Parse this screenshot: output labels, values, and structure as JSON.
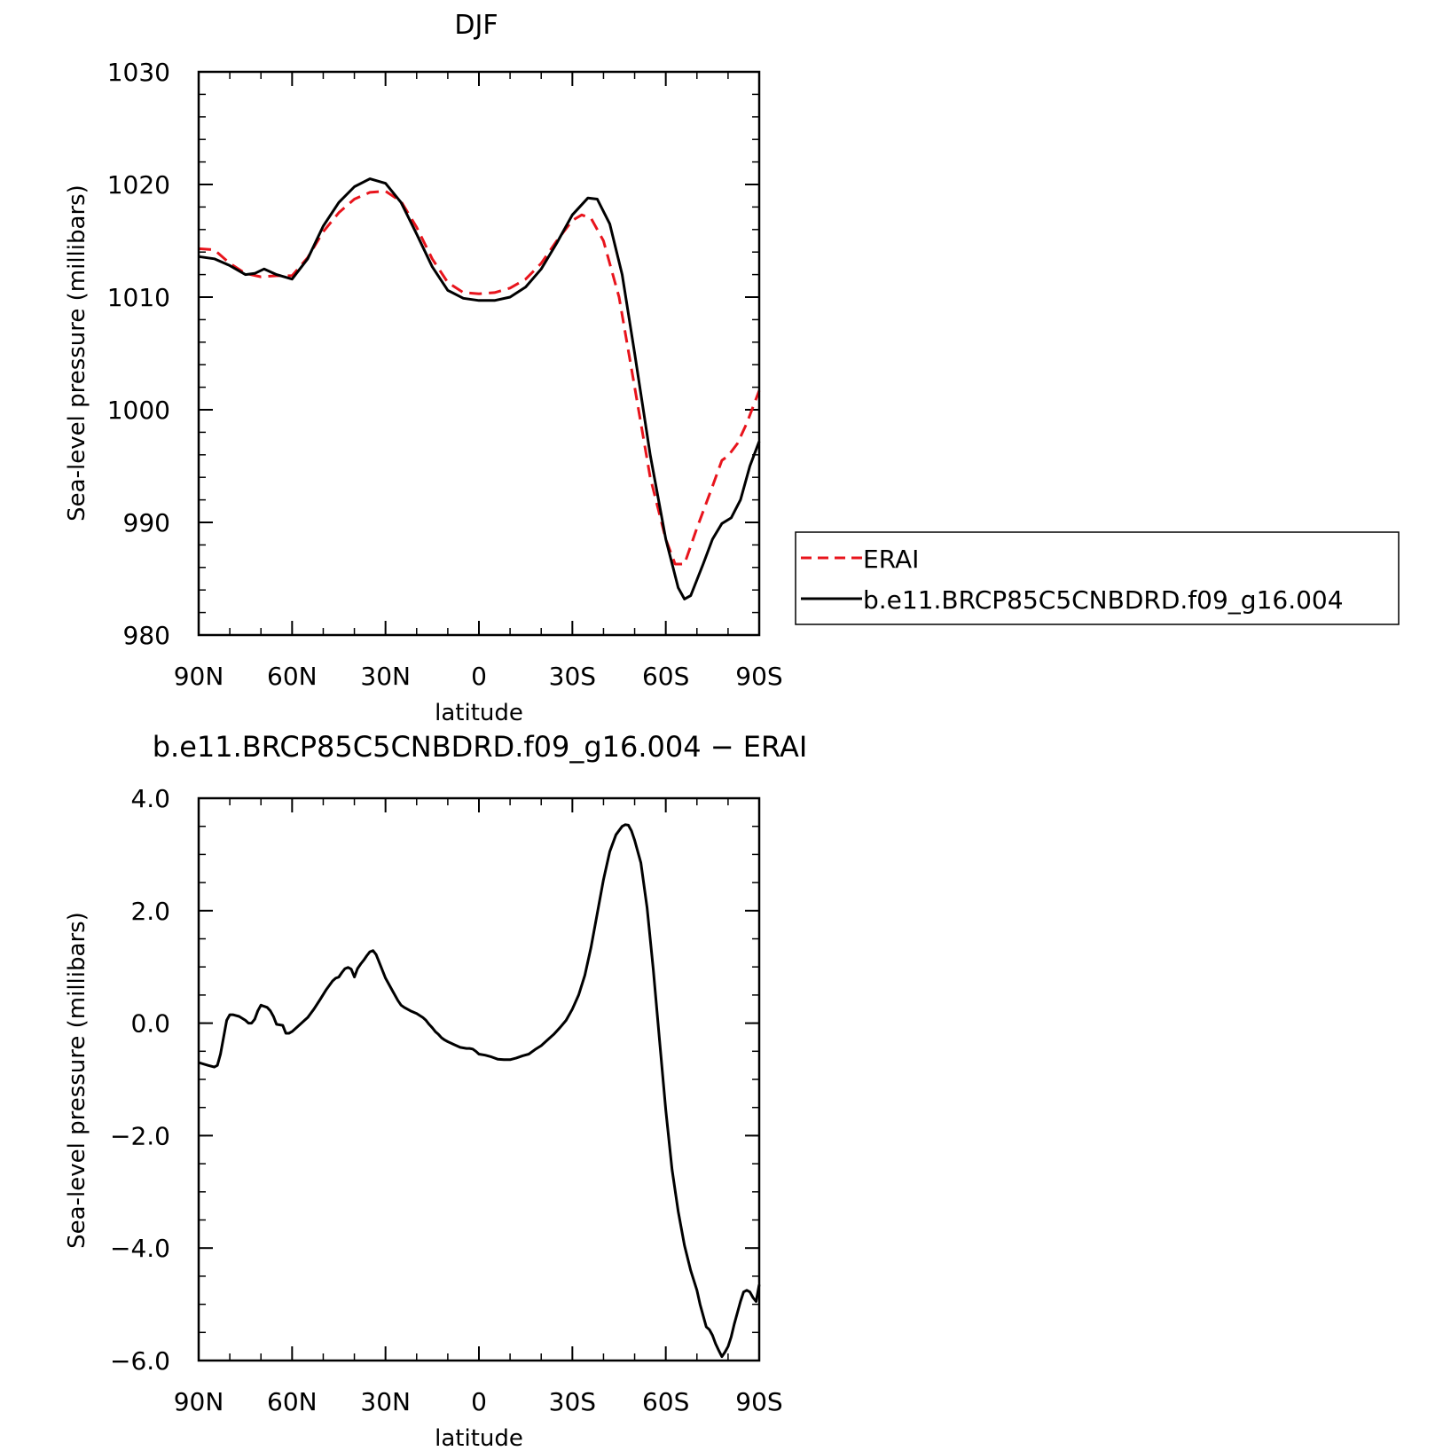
{
  "chart_data": [
    {
      "type": "line",
      "title": "DJF",
      "xlabel": "latitude",
      "ylabel": "Sea-level pressure (millibars)",
      "xlim": [
        90,
        -90
      ],
      "ylim": [
        980,
        1030
      ],
      "x_ticks": [
        90,
        60,
        30,
        0,
        -30,
        -60,
        -90
      ],
      "x_tick_labels": [
        "90N",
        "60N",
        "30N",
        "0",
        "30S",
        "60S",
        "90S"
      ],
      "y_ticks": [
        980,
        990,
        1000,
        1010,
        1020,
        1030
      ],
      "y_tick_labels": [
        "980",
        "990",
        "1000",
        "1010",
        "1020",
        "1030"
      ],
      "legend_position": "right",
      "series": [
        {
          "name": "ERAI",
          "color": "#e8141c",
          "dash": "dashed",
          "points": [
            [
              90,
              1014.3
            ],
            [
              85,
              1014.2
            ],
            [
              80,
              1013.0
            ],
            [
              75,
              1012.1
            ],
            [
              70,
              1011.8
            ],
            [
              65,
              1011.9
            ],
            [
              60,
              1011.9
            ],
            [
              55,
              1013.5
            ],
            [
              50,
              1015.8
            ],
            [
              45,
              1017.5
            ],
            [
              40,
              1018.7
            ],
            [
              35,
              1019.3
            ],
            [
              30,
              1019.4
            ],
            [
              25,
              1018.5
            ],
            [
              20,
              1016.2
            ],
            [
              15,
              1013.4
            ],
            [
              10,
              1011.3
            ],
            [
              5,
              1010.4
            ],
            [
              0,
              1010.3
            ],
            [
              -5,
              1010.4
            ],
            [
              -10,
              1010.8
            ],
            [
              -15,
              1011.6
            ],
            [
              -20,
              1013.0
            ],
            [
              -25,
              1015.0
            ],
            [
              -30,
              1016.8
            ],
            [
              -33,
              1017.3
            ],
            [
              -36,
              1017.0
            ],
            [
              -40,
              1015.0
            ],
            [
              -45,
              1010.0
            ],
            [
              -50,
              1002.0
            ],
            [
              -55,
              994.0
            ],
            [
              -60,
              988.5
            ],
            [
              -63,
              986.3
            ],
            [
              -66,
              986.3
            ],
            [
              -70,
              989.5
            ],
            [
              -75,
              993.2
            ],
            [
              -78,
              995.5
            ],
            [
              -80,
              995.9
            ],
            [
              -83,
              997.0
            ],
            [
              -86,
              998.8
            ],
            [
              -90,
              1001.7
            ]
          ]
        },
        {
          "name": "b.e11.BRCP85C5CNBDRD.f09_g16.004",
          "color": "#000000",
          "dash": "solid",
          "points": [
            [
              90,
              1013.6
            ],
            [
              85,
              1013.4
            ],
            [
              80,
              1012.8
            ],
            [
              75,
              1012.0
            ],
            [
              72,
              1012.1
            ],
            [
              69,
              1012.5
            ],
            [
              65,
              1012.0
            ],
            [
              60,
              1011.6
            ],
            [
              55,
              1013.4
            ],
            [
              50,
              1016.3
            ],
            [
              45,
              1018.4
            ],
            [
              40,
              1019.8
            ],
            [
              35,
              1020.5
            ],
            [
              30,
              1020.1
            ],
            [
              25,
              1018.4
            ],
            [
              20,
              1015.6
            ],
            [
              15,
              1012.7
            ],
            [
              10,
              1010.6
            ],
            [
              5,
              1009.9
            ],
            [
              0,
              1009.7
            ],
            [
              -5,
              1009.7
            ],
            [
              -10,
              1010.0
            ],
            [
              -15,
              1010.9
            ],
            [
              -20,
              1012.5
            ],
            [
              -25,
              1014.8
            ],
            [
              -30,
              1017.3
            ],
            [
              -35,
              1018.8
            ],
            [
              -38,
              1018.7
            ],
            [
              -42,
              1016.5
            ],
            [
              -46,
              1012.0
            ],
            [
              -50,
              1005.0
            ],
            [
              -55,
              996.0
            ],
            [
              -60,
              988.5
            ],
            [
              -64,
              984.2
            ],
            [
              -66,
              983.2
            ],
            [
              -68,
              983.5
            ],
            [
              -72,
              986.3
            ],
            [
              -75,
              988.5
            ],
            [
              -78,
              989.9
            ],
            [
              -81,
              990.4
            ],
            [
              -84,
              992.0
            ],
            [
              -87,
              995.0
            ],
            [
              -90,
              997.2
            ]
          ]
        }
      ]
    },
    {
      "type": "line",
      "title": "b.e11.BRCP85C5CNBDRD.f09_g16.004 − ERAI",
      "xlabel": "latitude",
      "ylabel": "Sea-level pressure (millibars)",
      "xlim": [
        90,
        -90
      ],
      "ylim": [
        -6.0,
        4.0
      ],
      "x_ticks": [
        90,
        60,
        30,
        0,
        -30,
        -60,
        -90
      ],
      "x_tick_labels": [
        "90N",
        "60N",
        "30N",
        "0",
        "30S",
        "60S",
        "90S"
      ],
      "y_ticks": [
        -6,
        -4,
        -2,
        0,
        2,
        4
      ],
      "y_tick_labels": [
        "−6.0",
        "−4.0",
        "−2.0",
        "0.0",
        "2.0",
        "4.0"
      ],
      "series": [
        {
          "color": "#000000",
          "dash": "solid",
          "points": [
            [
              90,
              -0.7
            ],
            [
              87,
              -0.75
            ],
            [
              85,
              -0.78
            ],
            [
              84,
              -0.75
            ],
            [
              83,
              -0.55
            ],
            [
              82,
              -0.25
            ],
            [
              81,
              0.05
            ],
            [
              80,
              0.15
            ],
            [
              79,
              0.15
            ],
            [
              77,
              0.12
            ],
            [
              75,
              0.05
            ],
            [
              74,
              0.0
            ],
            [
              73,
              0.0
            ],
            [
              72,
              0.07
            ],
            [
              71,
              0.22
            ],
            [
              70,
              0.32
            ],
            [
              69,
              0.3
            ],
            [
              68,
              0.28
            ],
            [
              67,
              0.22
            ],
            [
              66,
              0.12
            ],
            [
              65,
              -0.02
            ],
            [
              64,
              -0.03
            ],
            [
              63,
              -0.04
            ],
            [
              62,
              -0.18
            ],
            [
              61,
              -0.18
            ],
            [
              60,
              -0.15
            ],
            [
              58,
              -0.05
            ],
            [
              56,
              0.05
            ],
            [
              55,
              0.1
            ],
            [
              53,
              0.25
            ],
            [
              51,
              0.42
            ],
            [
              49,
              0.6
            ],
            [
              47,
              0.75
            ],
            [
              46,
              0.8
            ],
            [
              45,
              0.82
            ],
            [
              44,
              0.9
            ],
            [
              43,
              0.97
            ],
            [
              42,
              0.99
            ],
            [
              41,
              0.96
            ],
            [
              40,
              0.82
            ],
            [
              39,
              0.97
            ],
            [
              38,
              1.05
            ],
            [
              37,
              1.12
            ],
            [
              36,
              1.2
            ],
            [
              35,
              1.27
            ],
            [
              34,
              1.29
            ],
            [
              33,
              1.22
            ],
            [
              32,
              1.08
            ],
            [
              30,
              0.8
            ],
            [
              28,
              0.6
            ],
            [
              26,
              0.4
            ],
            [
              25,
              0.32
            ],
            [
              24,
              0.28
            ],
            [
              22,
              0.22
            ],
            [
              20,
              0.17
            ],
            [
              18,
              0.1
            ],
            [
              17,
              0.05
            ],
            [
              16,
              -0.02
            ],
            [
              15,
              -0.08
            ],
            [
              14,
              -0.15
            ],
            [
              13,
              -0.2
            ],
            [
              12,
              -0.26
            ],
            [
              11,
              -0.3
            ],
            [
              10,
              -0.33
            ],
            [
              8,
              -0.38
            ],
            [
              6,
              -0.43
            ],
            [
              4,
              -0.45
            ],
            [
              3,
              -0.45
            ],
            [
              2,
              -0.46
            ],
            [
              1,
              -0.5
            ],
            [
              0,
              -0.55
            ],
            [
              -2,
              -0.57
            ],
            [
              -4,
              -0.6
            ],
            [
              -6,
              -0.64
            ],
            [
              -8,
              -0.65
            ],
            [
              -10,
              -0.65
            ],
            [
              -12,
              -0.62
            ],
            [
              -14,
              -0.58
            ],
            [
              -16,
              -0.55
            ],
            [
              -18,
              -0.47
            ],
            [
              -20,
              -0.4
            ],
            [
              -22,
              -0.3
            ],
            [
              -24,
              -0.2
            ],
            [
              -26,
              -0.08
            ],
            [
              -28,
              0.05
            ],
            [
              -30,
              0.25
            ],
            [
              -32,
              0.5
            ],
            [
              -34,
              0.85
            ],
            [
              -36,
              1.35
            ],
            [
              -38,
              1.95
            ],
            [
              -40,
              2.55
            ],
            [
              -42,
              3.05
            ],
            [
              -44,
              3.35
            ],
            [
              -46,
              3.5
            ],
            [
              -47,
              3.53
            ],
            [
              -48,
              3.52
            ],
            [
              -49,
              3.42
            ],
            [
              -50,
              3.25
            ],
            [
              -52,
              2.85
            ],
            [
              -54,
              2.05
            ],
            [
              -56,
              0.95
            ],
            [
              -58,
              -0.3
            ],
            [
              -60,
              -1.55
            ],
            [
              -62,
              -2.6
            ],
            [
              -64,
              -3.35
            ],
            [
              -66,
              -3.95
            ],
            [
              -68,
              -4.4
            ],
            [
              -70,
              -4.75
            ],
            [
              -71,
              -5.0
            ],
            [
              -72,
              -5.2
            ],
            [
              -73,
              -5.4
            ],
            [
              -74,
              -5.45
            ],
            [
              -75,
              -5.55
            ],
            [
              -76,
              -5.7
            ],
            [
              -77,
              -5.82
            ],
            [
              -78,
              -5.93
            ],
            [
              -79,
              -5.85
            ],
            [
              -80,
              -5.75
            ],
            [
              -81,
              -5.58
            ],
            [
              -82,
              -5.35
            ],
            [
              -83,
              -5.15
            ],
            [
              -84,
              -4.95
            ],
            [
              -85,
              -4.78
            ],
            [
              -86,
              -4.75
            ],
            [
              -87,
              -4.78
            ],
            [
              -88,
              -4.88
            ],
            [
              -89,
              -4.95
            ],
            [
              -90,
              -4.65
            ]
          ]
        }
      ]
    }
  ]
}
